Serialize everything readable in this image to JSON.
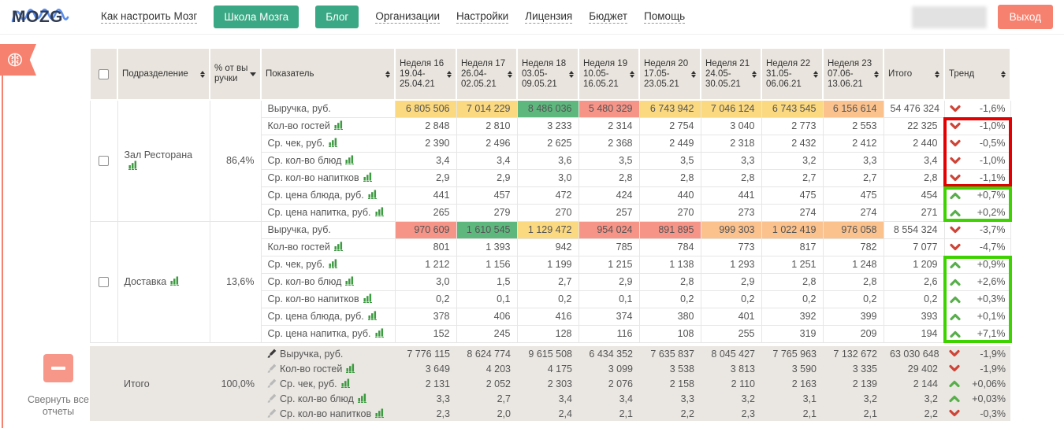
{
  "nav": {
    "logo_text": "MOZG",
    "items": [
      {
        "name": "nav-how-to-configure",
        "label": "Как настроить Мозг",
        "style": "link"
      },
      {
        "name": "nav-school",
        "label": "Школа Мозга",
        "style": "button"
      },
      {
        "name": "nav-blog",
        "label": "Блог",
        "style": "button"
      },
      {
        "name": "nav-organizations",
        "label": "Организации",
        "style": "link"
      },
      {
        "name": "nav-settings",
        "label": "Настройки",
        "style": "link"
      },
      {
        "name": "nav-license",
        "label": "Лицензия",
        "style": "link"
      },
      {
        "name": "nav-budget",
        "label": "Бюджет",
        "style": "link"
      },
      {
        "name": "nav-help",
        "label": "Помощь",
        "style": "link"
      }
    ],
    "logout_label": "Выход"
  },
  "sidebar": {
    "collapse_button_label": "Свернуть все отчеты"
  },
  "colors": {
    "heatmap": {
      "y": "#fbd980",
      "g": "#5eb87e",
      "r": "#f79488",
      "o": "#fbc28e"
    },
    "trend_down": "#cf4437",
    "trend_up": "#58ae4b",
    "accent_green": "#3aa884",
    "accent_salmon": "#f6816f"
  },
  "table": {
    "static_columns": [
      {
        "label": "Подразделение",
        "sortable": true
      },
      {
        "label": "% от выручки",
        "caret": true
      },
      {
        "label": "Показатель",
        "sortable": true
      }
    ],
    "week_columns": [
      {
        "title": "Неделя 16",
        "range": "19.04-25.04.21"
      },
      {
        "title": "Неделя 17",
        "range": "26.04-02.05.21"
      },
      {
        "title": "Неделя 18",
        "range": "03.05-09.05.21"
      },
      {
        "title": "Неделя 19",
        "range": "10.05-16.05.21"
      },
      {
        "title": "Неделя 20",
        "range": "17.05-23.05.21"
      },
      {
        "title": "Неделя 21",
        "range": "24.05-30.05.21"
      },
      {
        "title": "Неделя 22",
        "range": "31.05-06.06.21"
      },
      {
        "title": "Неделя 23",
        "range": "07.06-13.06.21"
      }
    ],
    "total_column": "Итого",
    "trend_column": "Тренд",
    "groups": [
      {
        "name": "Зал Ресторана",
        "chart_icon": true,
        "percent": "86,4%",
        "rows": [
          {
            "metric": "Выручка, руб.",
            "chart_icon": false,
            "values": [
              "6 805 506",
              "7 014 229",
              "8 486 036",
              "5 480 329",
              "6 743 942",
              "7 046 124",
              "6 743 545",
              "6 156 614"
            ],
            "colors": [
              "y",
              "y",
              "g",
              "r",
              "y",
              "y",
              "y",
              "o"
            ],
            "total": "54 476 324",
            "dir": "down",
            "trend": "-1,6%",
            "box": null
          },
          {
            "metric": "Кол-во гостей",
            "chart_icon": true,
            "values": [
              "2 848",
              "2 810",
              "3 233",
              "2 314",
              "2 754",
              "3 040",
              "2 773",
              "2 553"
            ],
            "total": "22 325",
            "dir": "down",
            "trend": "-1,0%",
            "box": "red-start"
          },
          {
            "metric": "Ср. чек, руб.",
            "chart_icon": true,
            "values": [
              "2 390",
              "2 496",
              "2 625",
              "2 368",
              "2 449",
              "2 318",
              "2 432",
              "2 412"
            ],
            "total": "2 440",
            "dir": "down",
            "trend": "-0,5%",
            "box": "red-mid"
          },
          {
            "metric": "Ср. кол-во блюд",
            "chart_icon": true,
            "values": [
              "3,4",
              "3,4",
              "3,6",
              "3,5",
              "3,5",
              "3,3",
              "3,2",
              "3,3"
            ],
            "total": "3,4",
            "dir": "down",
            "trend": "-1,0%",
            "box": "red-mid"
          },
          {
            "metric": "Ср. кол-во напитков",
            "chart_icon": true,
            "values": [
              "2,9",
              "2,9",
              "3,0",
              "2,8",
              "2,8",
              "2,8",
              "2,7",
              "2,7"
            ],
            "total": "2,8",
            "dir": "down",
            "trend": "-1,1%",
            "box": "red-end"
          },
          {
            "metric": "Ср. цена блюда, руб.",
            "chart_icon": true,
            "values": [
              "441",
              "457",
              "472",
              "424",
              "440",
              "441",
              "475",
              "475"
            ],
            "total": "454",
            "dir": "up",
            "trend": "+0,7%",
            "box": "green-start"
          },
          {
            "metric": "Ср. цена напитка, руб.",
            "chart_icon": true,
            "values": [
              "265",
              "279",
              "270",
              "257",
              "270",
              "273",
              "274",
              "274"
            ],
            "total": "271",
            "dir": "up",
            "trend": "+0,2%",
            "box": "green-end"
          }
        ]
      },
      {
        "name": "Доставка",
        "chart_icon": true,
        "percent": "13,6%",
        "rows": [
          {
            "metric": "Выручка, руб.",
            "chart_icon": false,
            "values": [
              "970 609",
              "1 610 545",
              "1 129 472",
              "954 024",
              "891 895",
              "999 303",
              "1 022 419",
              "976 058"
            ],
            "colors": [
              "r",
              "g",
              "y",
              "r",
              "r",
              "o",
              "o",
              "o"
            ],
            "total": "8 554 324",
            "dir": "down",
            "trend": "-3,7%",
            "box": null
          },
          {
            "metric": "Кол-во гостей",
            "chart_icon": true,
            "values": [
              "801",
              "1 393",
              "942",
              "785",
              "784",
              "773",
              "817",
              "782"
            ],
            "total": "7 077",
            "dir": "down",
            "trend": "-4,7%",
            "box": null
          },
          {
            "metric": "Ср. чек, руб.",
            "chart_icon": true,
            "values": [
              "1 212",
              "1 156",
              "1 199",
              "1 215",
              "1 138",
              "1 293",
              "1 251",
              "1 248"
            ],
            "total": "1 209",
            "dir": "up",
            "trend": "+0,9%",
            "box": "green-start"
          },
          {
            "metric": "Ср. кол-во блюд",
            "chart_icon": true,
            "values": [
              "3,0",
              "1,5",
              "2,7",
              "2,9",
              "2,8",
              "2,9",
              "2,8",
              "2,8"
            ],
            "total": "2,6",
            "dir": "up",
            "trend": "+2,6%",
            "box": "green-mid"
          },
          {
            "metric": "Ср. кол-во напитков",
            "chart_icon": true,
            "values": [
              "0,2",
              "0,1",
              "0,2",
              "0,1",
              "0,2",
              "0,2",
              "0,2",
              "0,2"
            ],
            "total": "0,2",
            "dir": "up",
            "trend": "+0,3%",
            "box": "green-mid"
          },
          {
            "metric": "Ср. цена блюда, руб.",
            "chart_icon": true,
            "values": [
              "378",
              "406",
              "416",
              "374",
              "380",
              "401",
              "392",
              "399"
            ],
            "total": "393",
            "dir": "up",
            "trend": "+0,1%",
            "box": "green-mid"
          },
          {
            "metric": "Ср. цена напитка, руб.",
            "chart_icon": true,
            "values": [
              "152",
              "245",
              "128",
              "116",
              "108",
              "255",
              "319",
              "209"
            ],
            "total": "194",
            "dir": "up",
            "trend": "+7,1%",
            "box": "green-end"
          }
        ]
      }
    ],
    "totals": {
      "name": "Итого",
      "percent": "100,0%",
      "rows": [
        {
          "metric": "Выручка, руб.",
          "brush": "dark",
          "chart_icon": false,
          "values": [
            "7 776 115",
            "8 624 774",
            "9 615 508",
            "6 434 352",
            "7 635 837",
            "8 045 427",
            "7 765 963",
            "7 132 672"
          ],
          "total": "63 030 648",
          "dir": "down",
          "trend": "-1,9%"
        },
        {
          "metric": "Кол-во гостей",
          "brush": "light",
          "chart_icon": true,
          "values": [
            "3 649",
            "4 203",
            "4 175",
            "3 099",
            "3 538",
            "3 813",
            "3 590",
            "3 335"
          ],
          "total": "29 402",
          "dir": "down",
          "trend": "-1,9%"
        },
        {
          "metric": "Ср. чек, руб.",
          "brush": "light",
          "chart_icon": true,
          "values": [
            "2 131",
            "2 052",
            "2 303",
            "2 076",
            "2 158",
            "2 110",
            "2 163",
            "2 139"
          ],
          "total": "2 144",
          "dir": "up",
          "trend": "+0,06%"
        },
        {
          "metric": "Ср. кол-во блюд",
          "brush": "light",
          "chart_icon": true,
          "values": [
            "3,3",
            "2,7",
            "3,4",
            "3,4",
            "3,3",
            "3,2",
            "3,1",
            "3,2"
          ],
          "total": "3,2",
          "dir": "up",
          "trend": "+0,03%"
        },
        {
          "metric": "Ср. кол-во напитков",
          "brush": "light",
          "chart_icon": true,
          "values": [
            "2,3",
            "2,0",
            "2,4",
            "2,1",
            "2,2",
            "2,3",
            "2,1",
            "2,1"
          ],
          "total": "2,2",
          "dir": "down",
          "trend": "-0,3%"
        }
      ]
    }
  }
}
